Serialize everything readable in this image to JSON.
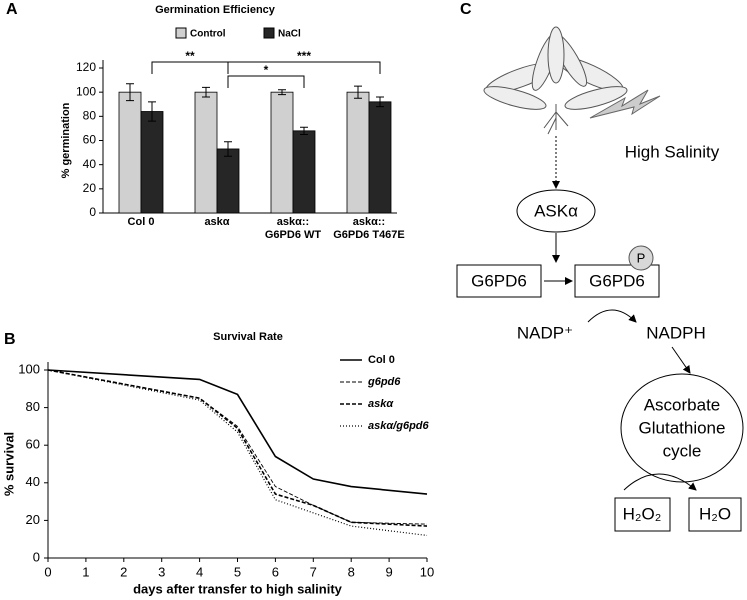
{
  "panel_labels": [
    "A",
    "B",
    "C"
  ],
  "chart_data": [
    {
      "type": "bar",
      "title": "Germination Efficiency",
      "y_label": "% germination",
      "categories": [
        "Col 0",
        "askα",
        "askα::\nG6PD6 WT",
        "askα::\nG6PD6 T467E"
      ],
      "series": [
        {
          "name": "Control",
          "color": "#d0d0d0",
          "values": [
            100,
            100,
            100,
            100
          ],
          "errors": [
            7,
            4,
            2,
            5
          ]
        },
        {
          "name": "NaCl",
          "color": "#262626",
          "values": [
            84,
            53,
            68,
            92
          ],
          "errors": [
            8,
            6,
            3,
            4
          ]
        }
      ],
      "annotations": [
        "**",
        "*",
        "***"
      ],
      "ylim": [
        0,
        120
      ],
      "yticks": [
        0,
        20,
        40,
        60,
        80,
        100,
        120
      ]
    },
    {
      "type": "line",
      "title": "Survival Rate",
      "x_label": "days after transfer to high salinity",
      "y_label": "% survival",
      "x": [
        0,
        4,
        5,
        6,
        7,
        8,
        10
      ],
      "series": [
        {
          "name": "Col 0",
          "color": "#000000",
          "style": "solid",
          "values": [
            100,
            95,
            87,
            54,
            42,
            38,
            34
          ]
        },
        {
          "name": "g6pd6",
          "color": "#000000",
          "style": "dashed-thin",
          "values": [
            100,
            85,
            70,
            38,
            28,
            19,
            18
          ]
        },
        {
          "name": "askα",
          "color": "#000000",
          "style": "dashed",
          "values": [
            100,
            85,
            69,
            34,
            28,
            19,
            17
          ]
        },
        {
          "name": "askα/g6pd6",
          "color": "#000000",
          "style": "dotted",
          "values": [
            100,
            84,
            67,
            31,
            24,
            17,
            12
          ]
        }
      ],
      "xlim": [
        0,
        10
      ],
      "xticks": [
        0,
        1,
        2,
        3,
        4,
        5,
        6,
        7,
        8,
        9,
        10
      ],
      "ylim": [
        0,
        100
      ],
      "yticks": [
        0,
        20,
        40,
        60,
        80,
        100
      ]
    }
  ],
  "diagram": {
    "stimulus": "High Salinity",
    "kinase": "ASKα",
    "enzyme": "G6PD6",
    "enzyme_p": "G6PD6",
    "phospho": "P",
    "substrate": "NADP⁺",
    "product": "NADPH",
    "cycle": [
      "Ascorbate",
      "Glutathione",
      "cycle"
    ],
    "h2o2": "H₂O₂",
    "h2o": "H₂O"
  }
}
